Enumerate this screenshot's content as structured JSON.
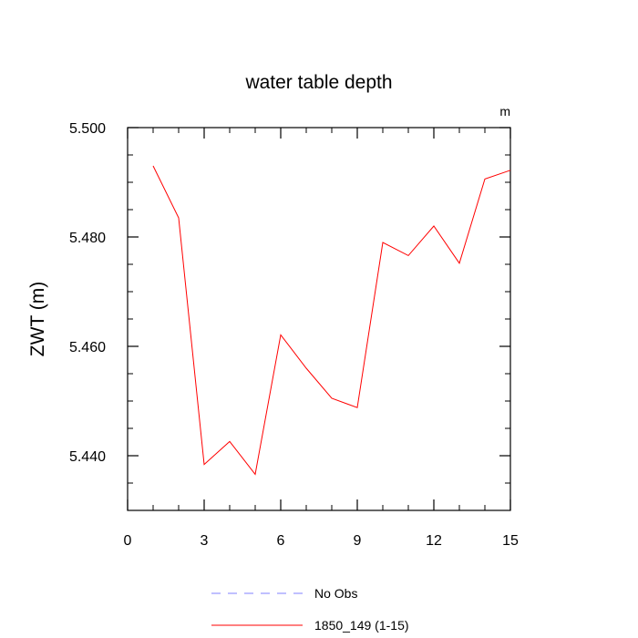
{
  "chart_data": {
    "type": "line",
    "title": "water table depth",
    "ylabel": "ZWT  (m)",
    "units_label": "m",
    "xlim": [
      0,
      15
    ],
    "ylim": [
      5.43,
      5.5
    ],
    "x_ticks": [
      0,
      3,
      6,
      9,
      12,
      15
    ],
    "x_tick_labels": [
      "0",
      "3",
      "6",
      "9",
      "12",
      "15"
    ],
    "y_ticks": [
      5.44,
      5.46,
      5.48,
      5.5
    ],
    "y_tick_labels": [
      "5.440",
      "5.460",
      "5.480",
      "5.500"
    ],
    "grid": false,
    "legend_position": "bottom",
    "series": [
      {
        "name": "No Obs",
        "color": "#8080ff",
        "dashed": true,
        "x": [],
        "values": []
      },
      {
        "name": "1850_149 (1-15)",
        "color": "#ff0000",
        "dashed": false,
        "x": [
          1,
          2,
          3,
          4,
          5,
          6,
          7,
          8,
          9,
          10,
          11,
          12,
          13,
          14,
          15
        ],
        "values": [
          5.493,
          5.4835,
          5.4384,
          5.4426,
          5.4366,
          5.4621,
          5.456,
          5.4505,
          5.4488,
          5.479,
          5.4766,
          5.482,
          5.4752,
          5.4906,
          5.4922
        ]
      }
    ]
  }
}
